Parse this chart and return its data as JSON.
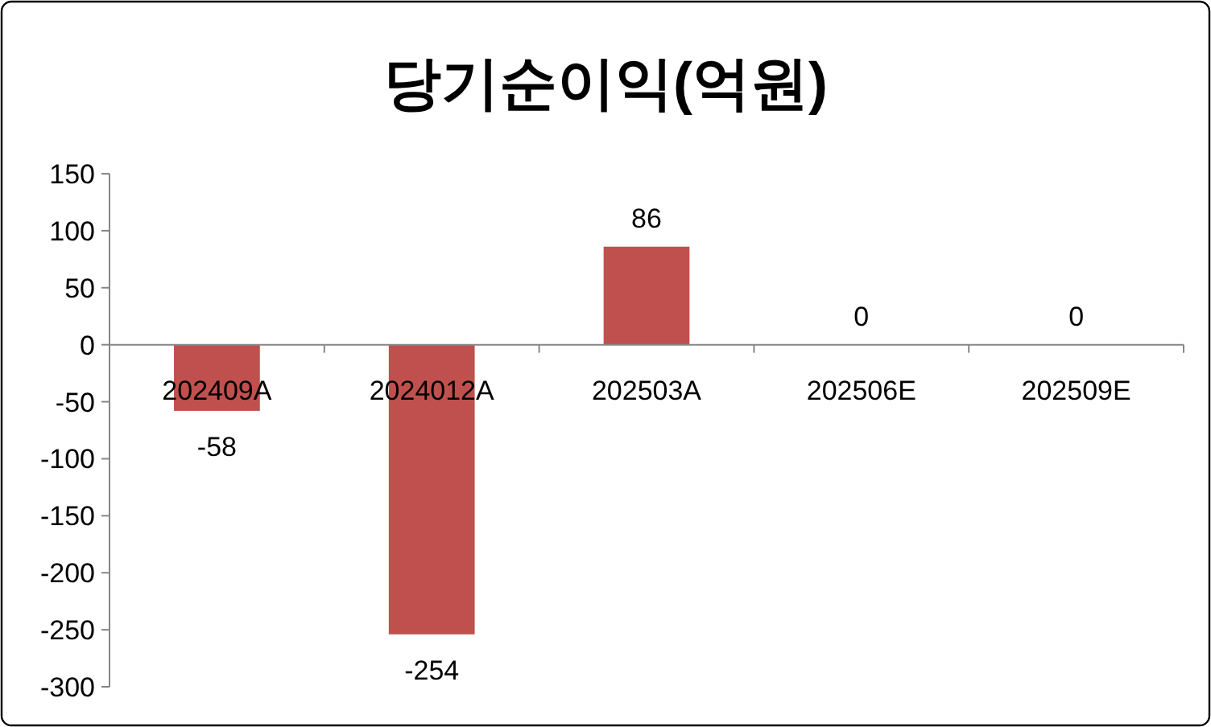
{
  "chart_data": {
    "type": "bar",
    "title": "당기순이익(억원)",
    "categories": [
      "202409A",
      "2024012A",
      "202503A",
      "202506E",
      "202509E"
    ],
    "values": [
      -58,
      -254,
      86,
      0,
      0
    ],
    "color": "#c0504d",
    "ylim": [
      -300,
      150
    ],
    "yticks": [
      -300,
      -250,
      -200,
      -150,
      -100,
      -50,
      0,
      50,
      100,
      150
    ],
    "data_labels": true
  }
}
